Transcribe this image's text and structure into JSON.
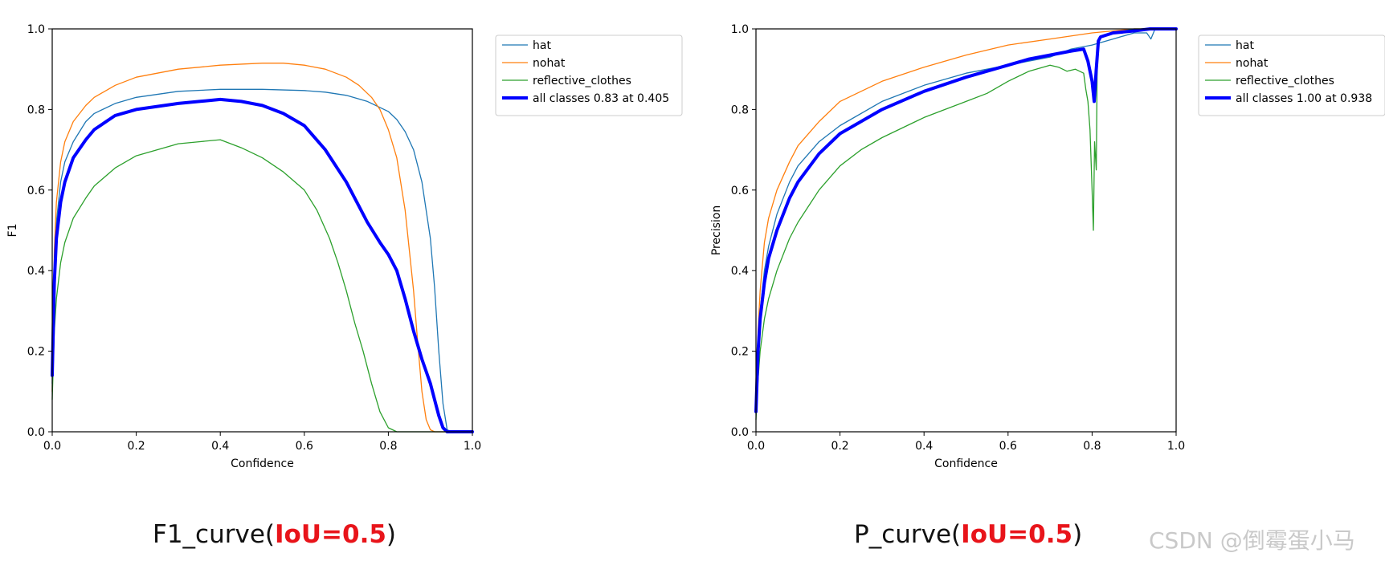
{
  "captions": [
    {
      "prefix": "F1_curve(",
      "highlight": "IoU=0.5",
      "suffix": ")"
    },
    {
      "prefix": "P_curve(",
      "highlight": "IoU=0.5",
      "suffix": ")"
    }
  ],
  "watermark": "CSDN @倒霉蛋小马",
  "chart_data": [
    {
      "type": "line",
      "xlabel": "Confidence",
      "ylabel": "F1",
      "xlim": [
        0,
        1
      ],
      "ylim": [
        0,
        1
      ],
      "xticks": [
        "0.0",
        "0.2",
        "0.4",
        "0.6",
        "0.8",
        "1.0"
      ],
      "yticks": [
        "0.0",
        "0.2",
        "0.4",
        "0.6",
        "0.8",
        "1.0"
      ],
      "grid": false,
      "legend_position": "outside-right",
      "series": [
        {
          "name": "hat",
          "color": "#1f77b4",
          "width": 1.3,
          "x": [
            0,
            0.005,
            0.01,
            0.02,
            0.03,
            0.05,
            0.08,
            0.1,
            0.15,
            0.2,
            0.3,
            0.4,
            0.5,
            0.6,
            0.65,
            0.7,
            0.75,
            0.8,
            0.82,
            0.84,
            0.86,
            0.88,
            0.9,
            0.91,
            0.92,
            0.93,
            0.94,
            0.95,
            1.0
          ],
          "y": [
            0.12,
            0.4,
            0.52,
            0.62,
            0.67,
            0.72,
            0.77,
            0.79,
            0.815,
            0.83,
            0.845,
            0.85,
            0.85,
            0.847,
            0.843,
            0.835,
            0.82,
            0.795,
            0.775,
            0.745,
            0.7,
            0.62,
            0.48,
            0.36,
            0.2,
            0.07,
            0.005,
            0.0,
            0.0
          ]
        },
        {
          "name": "nohat",
          "color": "#ff7f0e",
          "width": 1.3,
          "x": [
            0,
            0.005,
            0.01,
            0.02,
            0.03,
            0.05,
            0.08,
            0.1,
            0.15,
            0.2,
            0.3,
            0.4,
            0.5,
            0.55,
            0.6,
            0.65,
            0.7,
            0.73,
            0.76,
            0.78,
            0.8,
            0.82,
            0.84,
            0.86,
            0.87,
            0.88,
            0.89,
            0.9,
            0.91,
            1.0
          ],
          "y": [
            0.1,
            0.45,
            0.57,
            0.67,
            0.72,
            0.77,
            0.81,
            0.83,
            0.86,
            0.88,
            0.9,
            0.91,
            0.915,
            0.915,
            0.91,
            0.9,
            0.88,
            0.86,
            0.83,
            0.8,
            0.75,
            0.68,
            0.55,
            0.35,
            0.22,
            0.1,
            0.03,
            0.005,
            0.0,
            0.0
          ]
        },
        {
          "name": "reflective_clothes",
          "color": "#2ca02c",
          "width": 1.3,
          "x": [
            0,
            0.005,
            0.01,
            0.02,
            0.03,
            0.05,
            0.08,
            0.1,
            0.15,
            0.2,
            0.3,
            0.35,
            0.4,
            0.45,
            0.5,
            0.55,
            0.6,
            0.63,
            0.66,
            0.68,
            0.7,
            0.72,
            0.74,
            0.76,
            0.78,
            0.8,
            0.82,
            0.85,
            1.0
          ],
          "y": [
            0.08,
            0.25,
            0.33,
            0.42,
            0.47,
            0.53,
            0.58,
            0.61,
            0.655,
            0.685,
            0.715,
            0.72,
            0.725,
            0.705,
            0.68,
            0.645,
            0.6,
            0.55,
            0.48,
            0.42,
            0.35,
            0.27,
            0.2,
            0.12,
            0.05,
            0.01,
            0.0,
            0.0,
            0.0
          ]
        },
        {
          "name": "all classes 0.83 at 0.405",
          "color": "#0000ff",
          "width": 4,
          "x": [
            0,
            0.005,
            0.01,
            0.02,
            0.03,
            0.05,
            0.08,
            0.1,
            0.15,
            0.2,
            0.3,
            0.35,
            0.4,
            0.45,
            0.5,
            0.55,
            0.6,
            0.65,
            0.7,
            0.75,
            0.78,
            0.8,
            0.82,
            0.84,
            0.86,
            0.88,
            0.9,
            0.91,
            0.92,
            0.93,
            0.94,
            1.0
          ],
          "y": [
            0.14,
            0.37,
            0.48,
            0.57,
            0.62,
            0.68,
            0.725,
            0.75,
            0.785,
            0.8,
            0.815,
            0.82,
            0.825,
            0.82,
            0.81,
            0.79,
            0.76,
            0.7,
            0.62,
            0.52,
            0.47,
            0.44,
            0.4,
            0.33,
            0.25,
            0.18,
            0.12,
            0.08,
            0.04,
            0.01,
            0.0,
            0.0
          ]
        }
      ]
    },
    {
      "type": "line",
      "xlabel": "Confidence",
      "ylabel": "Precision",
      "xlim": [
        0,
        1
      ],
      "ylim": [
        0,
        1
      ],
      "xticks": [
        "0.0",
        "0.2",
        "0.4",
        "0.6",
        "0.8",
        "1.0"
      ],
      "yticks": [
        "0.0",
        "0.2",
        "0.4",
        "0.6",
        "0.8",
        "1.0"
      ],
      "grid": false,
      "legend_position": "outside-right",
      "series": [
        {
          "name": "hat",
          "color": "#1f77b4",
          "width": 1.3,
          "x": [
            0,
            0.005,
            0.01,
            0.02,
            0.03,
            0.05,
            0.08,
            0.1,
            0.15,
            0.2,
            0.3,
            0.4,
            0.5,
            0.6,
            0.7,
            0.75,
            0.8,
            0.85,
            0.9,
            0.93,
            0.94,
            0.95,
            1.0
          ],
          "y": [
            0.06,
            0.2,
            0.3,
            0.4,
            0.46,
            0.54,
            0.62,
            0.66,
            0.72,
            0.76,
            0.82,
            0.86,
            0.89,
            0.91,
            0.93,
            0.95,
            0.96,
            0.975,
            0.99,
            0.99,
            0.975,
            1.0,
            1.0
          ]
        },
        {
          "name": "nohat",
          "color": "#ff7f0e",
          "width": 1.3,
          "x": [
            0,
            0.005,
            0.01,
            0.02,
            0.03,
            0.05,
            0.08,
            0.1,
            0.15,
            0.2,
            0.3,
            0.4,
            0.5,
            0.6,
            0.7,
            0.8,
            0.85,
            0.9,
            1.0
          ],
          "y": [
            0.06,
            0.25,
            0.35,
            0.47,
            0.53,
            0.6,
            0.67,
            0.71,
            0.77,
            0.82,
            0.87,
            0.905,
            0.935,
            0.96,
            0.975,
            0.99,
            0.995,
            1.0,
            1.0
          ]
        },
        {
          "name": "reflective_clothes",
          "color": "#2ca02c",
          "width": 1.3,
          "x": [
            0,
            0.005,
            0.01,
            0.02,
            0.03,
            0.05,
            0.08,
            0.1,
            0.15,
            0.2,
            0.25,
            0.3,
            0.4,
            0.45,
            0.5,
            0.55,
            0.6,
            0.65,
            0.7,
            0.72,
            0.74,
            0.76,
            0.78,
            0.785,
            0.79,
            0.795,
            0.8,
            0.803,
            0.806,
            0.81,
            0.812,
            0.815,
            0.82,
            0.85,
            0.9,
            1.0
          ],
          "y": [
            0.03,
            0.13,
            0.2,
            0.28,
            0.33,
            0.4,
            0.48,
            0.52,
            0.6,
            0.66,
            0.7,
            0.73,
            0.78,
            0.8,
            0.82,
            0.84,
            0.87,
            0.895,
            0.91,
            0.905,
            0.895,
            0.9,
            0.89,
            0.85,
            0.82,
            0.75,
            0.6,
            0.5,
            0.72,
            0.65,
            0.9,
            0.96,
            0.98,
            0.99,
            1.0,
            1.0
          ]
        },
        {
          "name": "all classes 1.00 at 0.938",
          "color": "#0000ff",
          "width": 4,
          "x": [
            0,
            0.005,
            0.01,
            0.02,
            0.03,
            0.05,
            0.08,
            0.1,
            0.15,
            0.2,
            0.3,
            0.4,
            0.5,
            0.6,
            0.65,
            0.7,
            0.75,
            0.78,
            0.79,
            0.8,
            0.805,
            0.81,
            0.815,
            0.82,
            0.85,
            0.9,
            0.938,
            1.0
          ],
          "y": [
            0.05,
            0.2,
            0.28,
            0.37,
            0.43,
            0.5,
            0.58,
            0.62,
            0.69,
            0.74,
            0.8,
            0.845,
            0.88,
            0.91,
            0.925,
            0.935,
            0.945,
            0.95,
            0.92,
            0.87,
            0.82,
            0.9,
            0.97,
            0.98,
            0.99,
            0.995,
            1.0,
            1.0
          ]
        }
      ]
    }
  ]
}
